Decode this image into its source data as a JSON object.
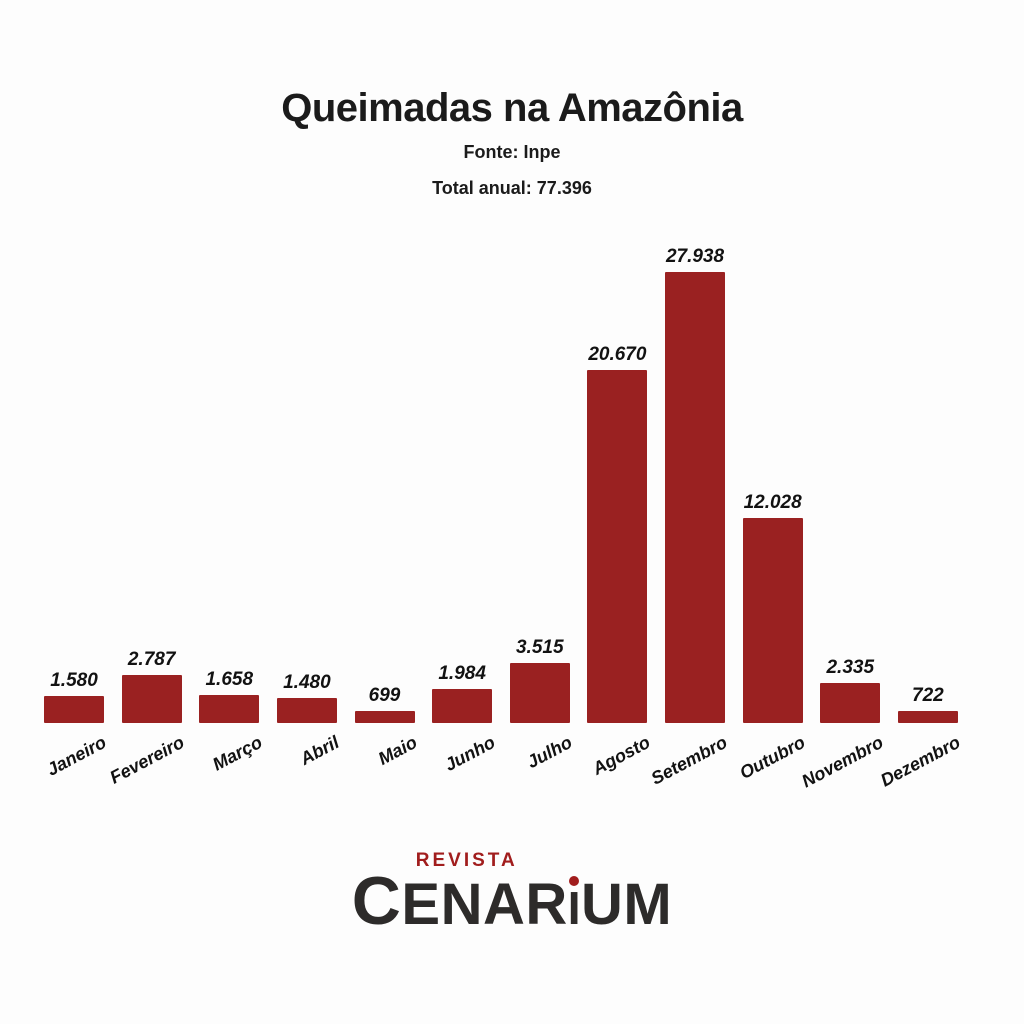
{
  "header": {
    "title": "Queimadas na Amazônia",
    "source": "Fonte: Inpe",
    "total": "Total anual: 77.396"
  },
  "chart_data": {
    "type": "bar",
    "title": "Queimadas na Amazônia",
    "subtitle": "Fonte: Inpe",
    "annotation_total": "Total anual: 77.396",
    "categories": [
      "Janeiro",
      "Fevereiro",
      "Março",
      "Abril",
      "Maio",
      "Junho",
      "Julho",
      "Agosto",
      "Setembro",
      "Outubro",
      "Novembro",
      "Dezembro"
    ],
    "values": [
      1580,
      2787,
      1658,
      1480,
      699,
      1984,
      3515,
      20670,
      27938,
      12028,
      2335,
      722
    ],
    "value_labels": [
      "1.580",
      "2.787",
      "1.658",
      "1.480",
      "699",
      "1.984",
      "3.515",
      "20.670",
      "27.938",
      "12.028",
      "2.335",
      "722"
    ],
    "total_annual": 77396,
    "xlabel": "",
    "ylabel": "",
    "ylim": [
      0,
      27938
    ],
    "grid": false,
    "legend": "none",
    "bar_color": "#9a2121",
    "data_label_style": "italic-above-bar",
    "tick_label_rotation_deg": -28
  },
  "logo": {
    "revista": "REVISTA",
    "cenarium_parts": [
      "C",
      "ENAR",
      "I",
      "UM"
    ],
    "red": "#a11d1d",
    "dark": "#2d2b2a"
  }
}
